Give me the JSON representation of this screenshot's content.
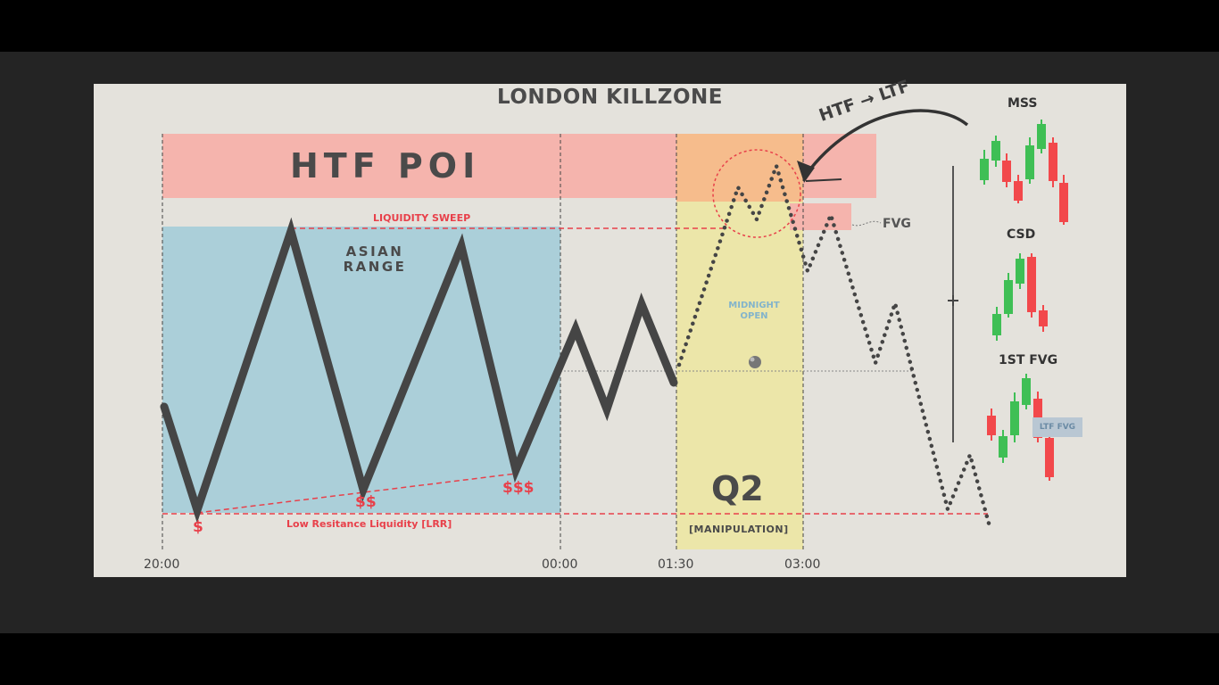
{
  "title": "LONDON KILLZONE",
  "zones": {
    "htf_poi": "HTF POI",
    "asian_range": [
      "ASIAN",
      "RANGE"
    ],
    "midnight_open": [
      "MIDNIGHT",
      "OPEN"
    ],
    "q2": "Q2",
    "manipulation": "[MANIPULATION]",
    "fvg": "FVG"
  },
  "labels": {
    "liquidity_sweep": "LIQUIDITY SWEEP",
    "lrr": "Low Resitance Liquidity [LRR]",
    "htf_ltf": "HTF → LTF",
    "dollar_1": "$",
    "dollar_2": "$$",
    "dollar_3": "$$$"
  },
  "time_axis": [
    "20:00",
    "00:00",
    "01:30",
    "03:00"
  ],
  "sidebar": {
    "mss": "MSS",
    "csd": "CSD",
    "first_fvg": "1ST FVG",
    "ltf_fvg": "LTF FVG"
  },
  "colors": {
    "htf_poi_zone": "#f5b4ad",
    "asian_range_zone": "#abcfd9",
    "q2_zone": "#ece6a9",
    "manipulation_top": "#f6bc8c",
    "liquidity_red": "#e8404a",
    "bull_candle": "#3fbf55",
    "bear_candle": "#f2484b",
    "price_line": "#454545"
  }
}
